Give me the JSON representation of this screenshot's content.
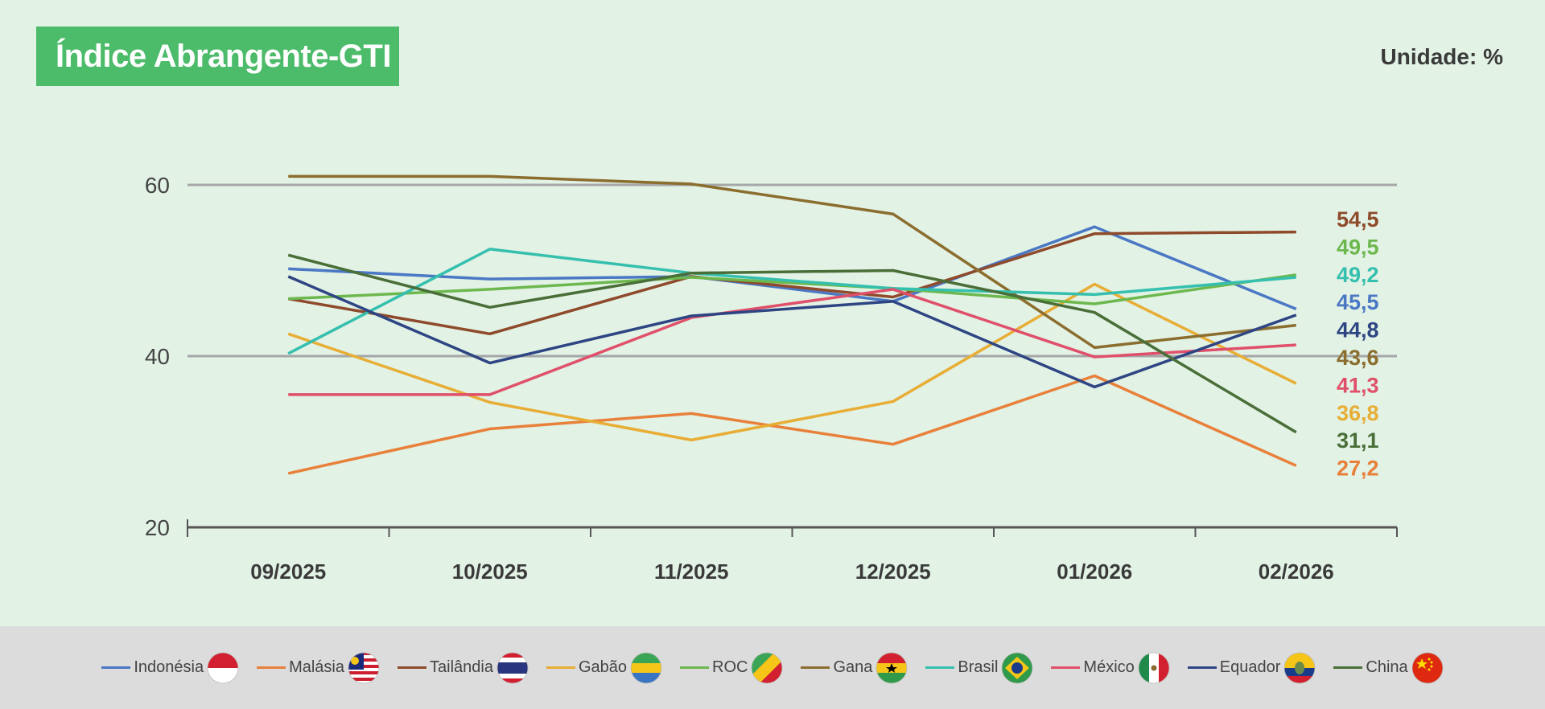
{
  "title": "Índice Abrangente-GTI",
  "unit_label": "Unidade: %",
  "chart_data": {
    "type": "line",
    "title": "Índice Abrangente-GTI",
    "xlabel": "",
    "ylabel": "",
    "categories": [
      "09/2025",
      "10/2025",
      "11/2025",
      "12/2025",
      "01/2026",
      "02/2026"
    ],
    "ylim": [
      20,
      60
    ],
    "yticks": [
      20,
      40,
      60
    ],
    "grid": true,
    "legend": "bottom",
    "series": [
      {
        "name": "Indonésia",
        "color": "#4a78c4",
        "flag": "indonesia-flag",
        "values": [
          50.2,
          49.0,
          49.3,
          46.4,
          55.1,
          45.5
        ],
        "end_label": "45,5"
      },
      {
        "name": "Malásia",
        "color": "#e8803a",
        "flag": "malaysia-flag",
        "values": [
          26.3,
          31.5,
          33.3,
          29.7,
          37.7,
          27.2
        ],
        "end_label": "27,2"
      },
      {
        "name": "Tailândia",
        "color": "#8e4a2a",
        "flag": "thailand-flag",
        "values": [
          46.7,
          42.6,
          49.3,
          46.9,
          54.3,
          54.5
        ],
        "end_label": "54,5"
      },
      {
        "name": "Gabão",
        "color": "#e8ad35",
        "flag": "gabon-flag",
        "values": [
          42.6,
          34.6,
          30.2,
          34.7,
          48.4,
          36.8
        ],
        "end_label": "36,8"
      },
      {
        "name": "ROC",
        "color": "#6db84e",
        "flag": "congo-flag",
        "values": [
          46.7,
          47.8,
          49.2,
          47.9,
          46.1,
          49.5
        ],
        "end_label": "49,5"
      },
      {
        "name": "Gana",
        "color": "#8b6d2e",
        "flag": "ghana-flag",
        "values": [
          61.0,
          61.0,
          60.1,
          56.6,
          41.0,
          43.6
        ],
        "end_label": "43,6"
      },
      {
        "name": "Brasil",
        "color": "#35bfae",
        "flag": "brazil-flag",
        "values": [
          40.3,
          52.5,
          49.7,
          47.9,
          47.2,
          49.2
        ],
        "end_label": "49,2"
      },
      {
        "name": "México",
        "color": "#e0506a",
        "flag": "mexico-flag",
        "values": [
          35.5,
          35.5,
          44.5,
          47.8,
          39.9,
          41.3
        ],
        "end_label": "41,3"
      },
      {
        "name": "Equador",
        "color": "#2e4583",
        "flag": "ecuador-flag",
        "values": [
          49.3,
          39.2,
          44.7,
          46.4,
          36.4,
          44.8
        ],
        "end_label": "44,8"
      },
      {
        "name": "China",
        "color": "#4a6e38",
        "flag": "china-flag",
        "values": [
          51.8,
          45.7,
          49.7,
          50.0,
          45.1,
          31.1
        ],
        "end_label": "31,1"
      }
    ],
    "end_label_order": [
      "Tailândia",
      "ROC",
      "Brasil",
      "Indonésia",
      "Equador",
      "Gana",
      "México",
      "Gabão",
      "China",
      "Malásia"
    ]
  }
}
